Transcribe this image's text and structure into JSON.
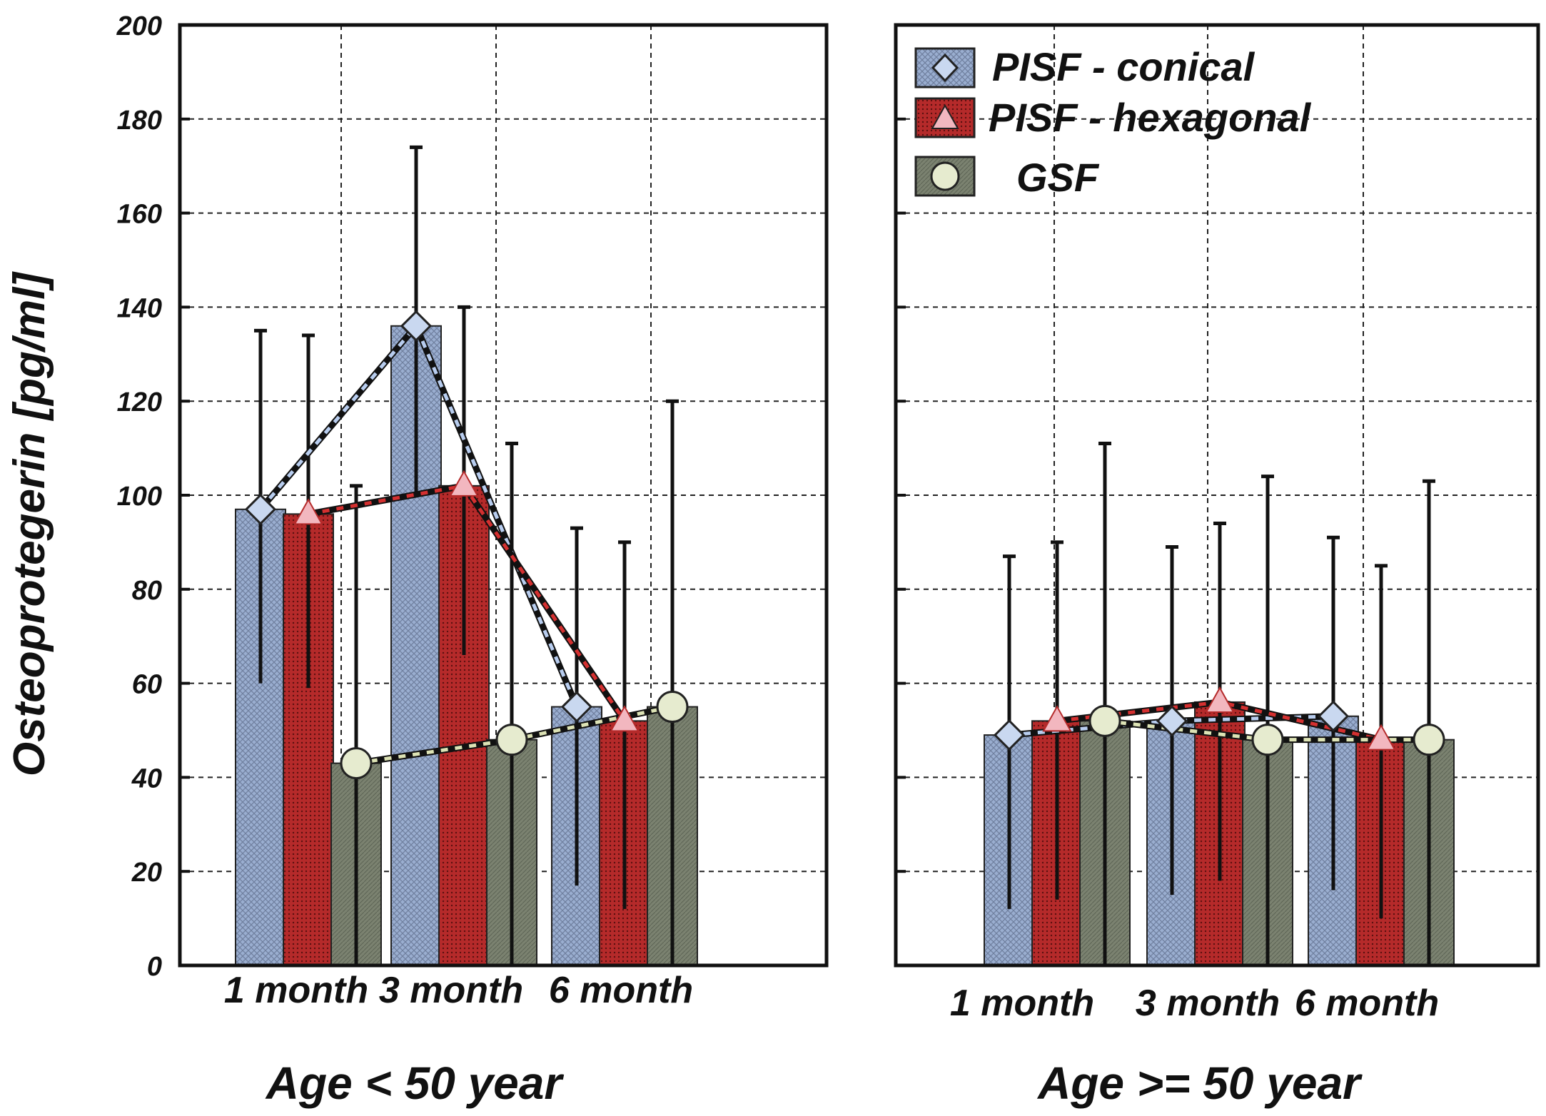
{
  "chart_data": {
    "type": "bar",
    "ylabel": "Osteoprotegerin [pg/ml]",
    "ylim": [
      0,
      200
    ],
    "yticks": [
      0,
      20,
      40,
      60,
      80,
      100,
      120,
      140,
      160,
      180,
      200
    ],
    "grid": true,
    "categories": [
      "1 month",
      "3 month",
      "6 month"
    ],
    "legend_position": "top-left of right panel",
    "colors": {
      "PISF - conical": "#9aaed0",
      "PISF - hexagonal": "#b52a2a",
      "GSF": "#7b8270",
      "gsf_line": "#dde3b5",
      "conical_line": "#b8cdef",
      "hex_line": "#d43030"
    },
    "legend": [
      {
        "name": "PISF - conical",
        "marker": "diamond"
      },
      {
        "name": "PISF - hexagonal",
        "marker": "triangle"
      },
      {
        "name": "GSF",
        "marker": "circle"
      }
    ],
    "panels": [
      {
        "group_label": "Age < 50 year",
        "series": [
          {
            "name": "PISF - conical",
            "values": [
              97,
              136,
              55
            ],
            "err_high": [
              135,
              174,
              93
            ],
            "err_low": [
              60,
              100,
              17
            ]
          },
          {
            "name": "PISF - hexagonal",
            "values": [
              96,
              102,
              52
            ],
            "err_high": [
              134,
              140,
              90
            ],
            "err_low": [
              59,
              66,
              12
            ]
          },
          {
            "name": "GSF",
            "values": [
              43,
              48,
              55
            ],
            "err_high": [
              102,
              111,
              120
            ],
            "err_low": [
              0,
              0,
              0
            ]
          }
        ]
      },
      {
        "group_label": "Age >= 50 year",
        "series": [
          {
            "name": "PISF - conical",
            "values": [
              49,
              52,
              53
            ],
            "err_high": [
              87,
              89,
              91
            ],
            "err_low": [
              12,
              15,
              16
            ]
          },
          {
            "name": "PISF - hexagonal",
            "values": [
              52,
              56,
              48
            ],
            "err_high": [
              90,
              94,
              85
            ],
            "err_low": [
              14,
              18,
              10
            ]
          },
          {
            "name": "GSF",
            "values": [
              52,
              48,
              48
            ],
            "err_high": [
              111,
              104,
              103
            ],
            "err_low": [
              0,
              0,
              0
            ]
          }
        ]
      }
    ]
  }
}
